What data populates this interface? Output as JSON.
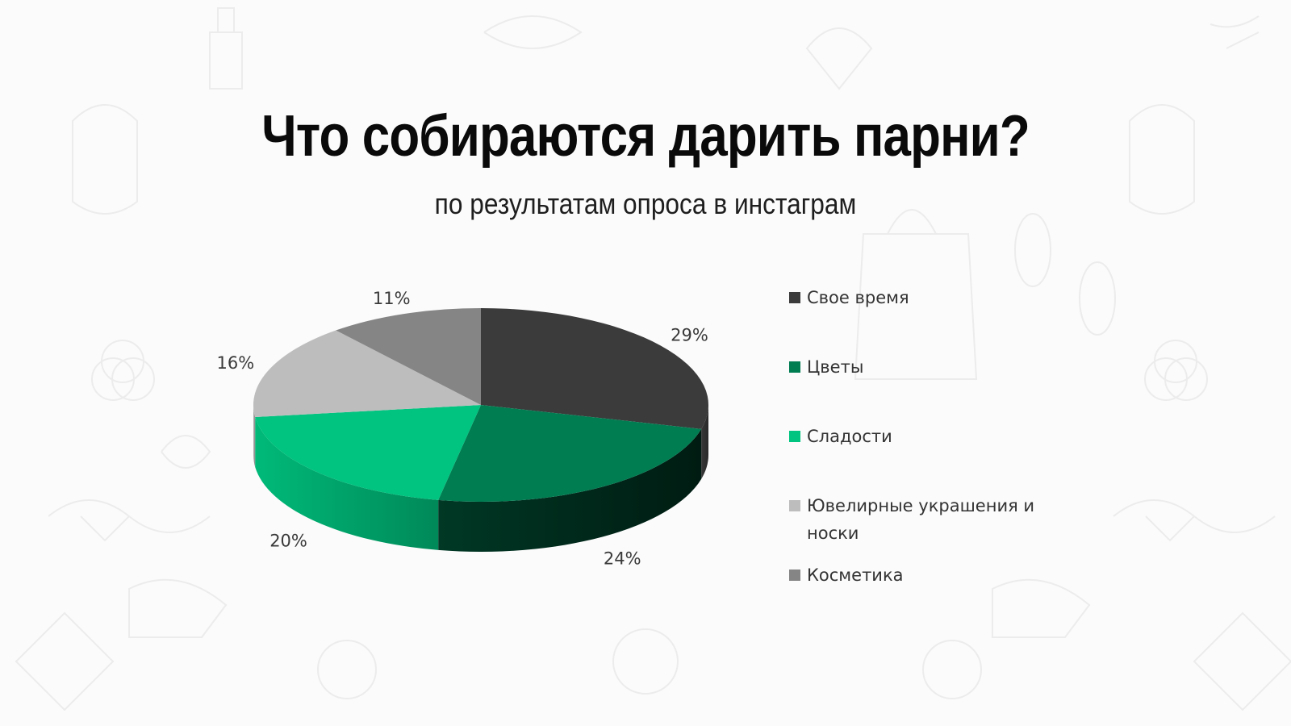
{
  "title": "Что собираются дарить парни?",
  "subtitle": "по результатам опроса в инстаграм",
  "chart_data": {
    "type": "pie",
    "style": "3d",
    "legend_position": "right",
    "categories": [
      "Свое время",
      "Цветы",
      "Сладости",
      "Ювелирные украшения и носки",
      "Косметика"
    ],
    "values": [
      29,
      24,
      20,
      16,
      11
    ],
    "value_labels": [
      "29%",
      "24%",
      "20%",
      "16%",
      "11%"
    ],
    "colors": [
      "#3b3b3b",
      "#017d52",
      "#00c47f",
      "#bdbdbd",
      "#858585"
    ]
  }
}
